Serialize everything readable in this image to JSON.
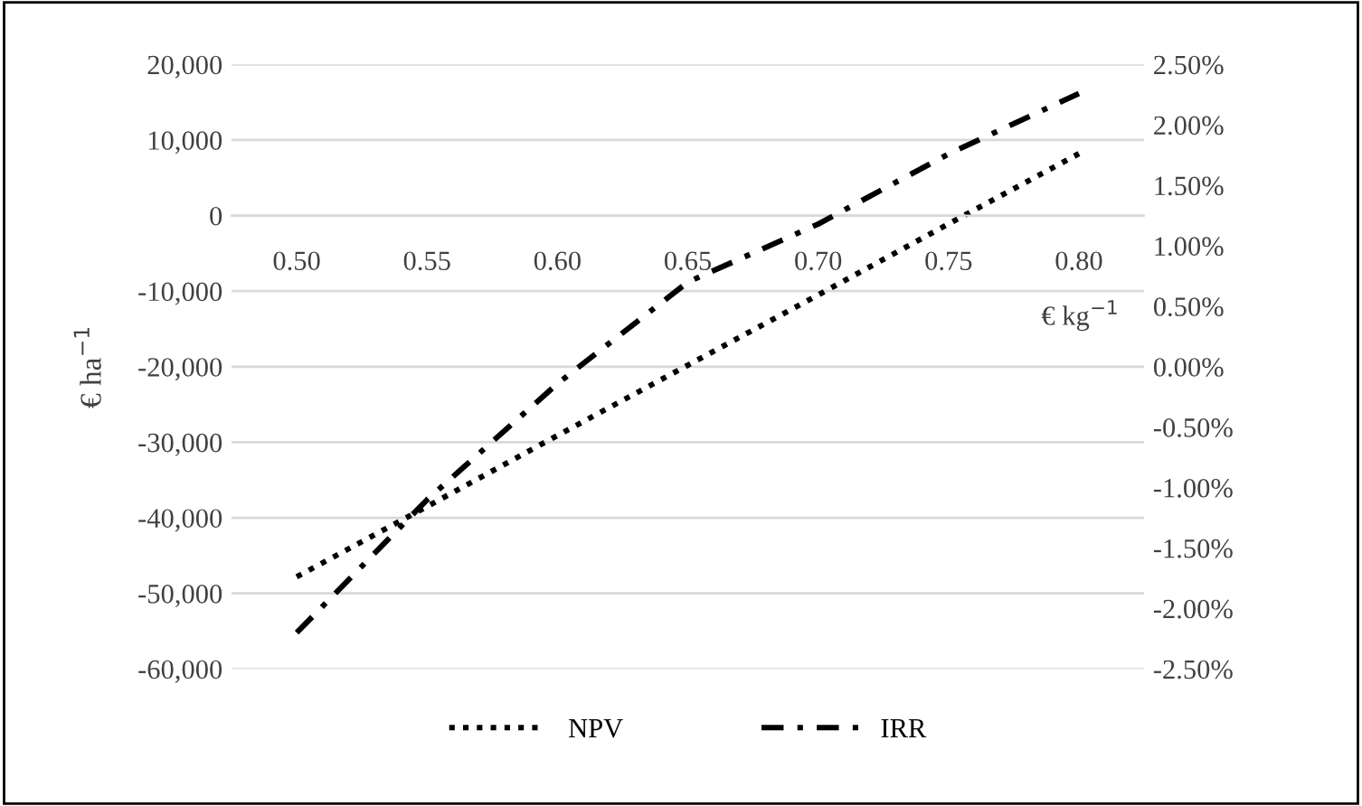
{
  "chart_data": {
    "type": "line",
    "xlabel": "€ kg$^{−1}$",
    "ylabel": "€ ha$^{−1}$",
    "categories": [
      "0.50",
      "0.55",
      "0.60",
      "0.65",
      "0.70",
      "0.75",
      "0.80"
    ],
    "series": [
      {
        "name": "NPV",
        "color": "#000000",
        "line_style": "dotted",
        "values": [
          -47800,
          -38500,
          -29100,
          -19800,
          -10500,
          -1100,
          8200
        ]
      },
      {
        "name": "IRR",
        "color": "#000000",
        "line_style": "dashdot",
        "axis": "y2",
        "values": [
          -2.2,
          -1.1,
          -0.14,
          0.7,
          1.18,
          1.76,
          2.26
        ]
      }
    ],
    "ylim": [
      -60000,
      20000
    ],
    "yticks": [
      {
        "value": -60000,
        "label": "-60,000"
      },
      {
        "value": -50000,
        "label": "-50,000"
      },
      {
        "value": -40000,
        "label": "-40,000"
      },
      {
        "value": -30000,
        "label": "-30,000"
      },
      {
        "value": -20000,
        "label": "-20,000"
      },
      {
        "value": -10000,
        "label": "-10,000"
      },
      0,
      {
        "value": 10000,
        "label": "10,000"
      },
      {
        "value": 20000,
        "label": "20,000"
      }
    ],
    "y2lim": [
      -2.5,
      2.5
    ],
    "y2ticks": [
      {
        "value": -2.5,
        "label": "-2.50%"
      },
      {
        "value": -2.0,
        "label": "-2.00%"
      },
      {
        "value": -1.5,
        "label": "-1.50%"
      },
      {
        "value": -1.0,
        "label": "-1.00%"
      },
      {
        "value": -0.5,
        "label": "-0.50%"
      },
      {
        "value": 0,
        "label": "0.00%"
      },
      {
        "value": 0.5,
        "label": "0.50%"
      },
      {
        "value": 1.0,
        "label": "1.00%"
      },
      {
        "value": 1.5,
        "label": "1.50%"
      },
      {
        "value": 2.0,
        "label": "2.00%"
      },
      {
        "value": 2.5,
        "label": "2.50%"
      }
    ],
    "grid": "y",
    "legend": "bottom"
  }
}
